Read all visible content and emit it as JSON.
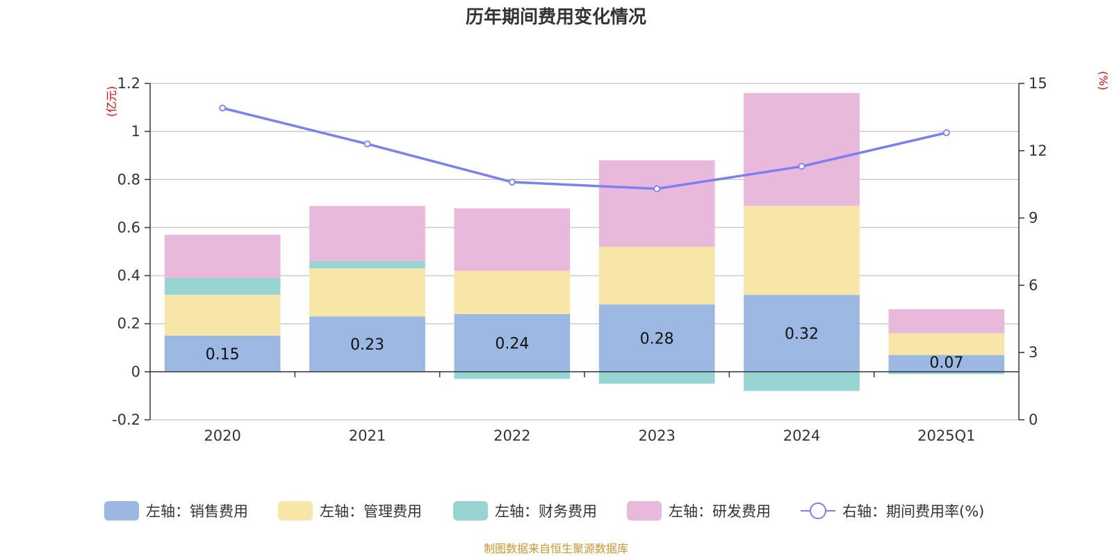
{
  "chart_data": {
    "type": "bar",
    "title": "历年期间费用变化情况",
    "categories": [
      "2020",
      "2021",
      "2022",
      "2023",
      "2024",
      "2025Q1"
    ],
    "left_axis": {
      "unit": "(亿元)",
      "ylim": [
        -0.2,
        1.2
      ],
      "ticks": [
        "1.2",
        "1",
        "0.8",
        "0.6",
        "0.4",
        "0.2",
        "0",
        "-0.2"
      ],
      "tick_values": [
        1.2,
        1,
        0.8,
        0.6,
        0.4,
        0.2,
        0,
        -0.2
      ]
    },
    "right_axis": {
      "unit": "(%)",
      "ylim": [
        0,
        15
      ],
      "ticks": [
        "15",
        "12",
        "9",
        "6",
        "3",
        "0"
      ],
      "tick_values": [
        15,
        12,
        9,
        6,
        3,
        0
      ]
    },
    "series": [
      {
        "name": "左轴：销售费用",
        "kind": "bar",
        "color": "#9bb8e3",
        "values": [
          0.15,
          0.23,
          0.24,
          0.28,
          0.32,
          0.07
        ],
        "labels": [
          "0.15",
          "0.23",
          "0.24",
          "0.28",
          "0.32",
          "0.07"
        ]
      },
      {
        "name": "左轴：管理费用",
        "kind": "bar",
        "color": "#f8e6a8",
        "values": [
          0.17,
          0.2,
          0.18,
          0.24,
          0.37,
          0.09
        ]
      },
      {
        "name": "左轴：财务费用",
        "kind": "bar",
        "color": "#97d4d2",
        "values": [
          0.07,
          0.03,
          -0.03,
          -0.05,
          -0.08,
          -0.01
        ]
      },
      {
        "name": "左轴：研发费用",
        "kind": "bar",
        "color": "#e8b9db",
        "values": [
          0.18,
          0.23,
          0.26,
          0.36,
          0.47,
          0.1
        ]
      },
      {
        "name": "右轴：期间费用率(%)",
        "kind": "line",
        "axis": "right",
        "color": "#7b7ff0",
        "values": [
          13.9,
          12.3,
          10.6,
          10.3,
          11.3,
          12.8
        ]
      }
    ],
    "source": "制图数据来自恒生聚源数据库"
  }
}
